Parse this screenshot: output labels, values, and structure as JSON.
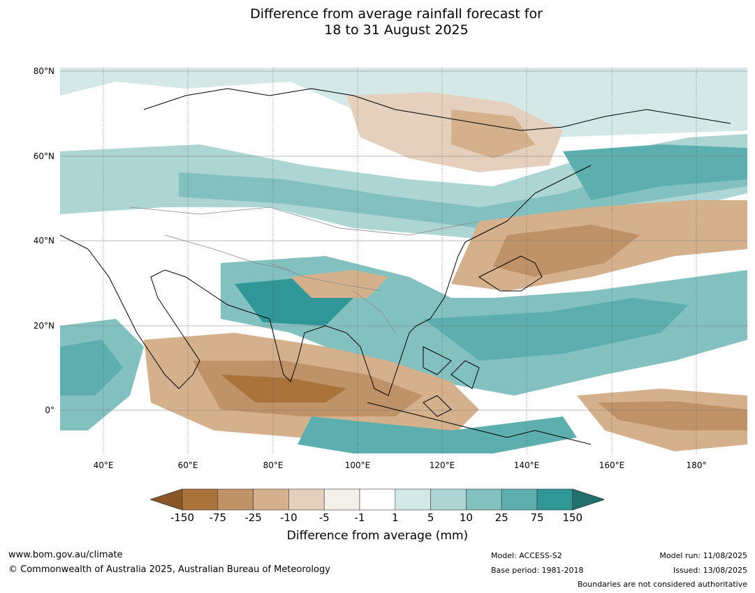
{
  "title": {
    "line1": "Difference from average rainfall forecast for",
    "line2": "18 to 31 August 2025"
  },
  "axes": {
    "lat_labels": [
      "80°N",
      "60°N",
      "40°N",
      "20°N",
      "0°"
    ],
    "lon_labels": [
      "40°E",
      "60°E",
      "80°E",
      "100°E",
      "120°E",
      "140°E",
      "160°E",
      "180°"
    ]
  },
  "colorbar": {
    "ticks": [
      "-150",
      "-75",
      "-25",
      "-10",
      "-5",
      "-1",
      "1",
      "5",
      "10",
      "25",
      "75",
      "150"
    ],
    "colors": [
      "#8a5628",
      "#a9733c",
      "#bf9267",
      "#d4b18c",
      "#e4d0bd",
      "#f3efe9",
      "#ffffff",
      "#d3e8e7",
      "#acd5d4",
      "#83c1c0",
      "#5daeae",
      "#319696",
      "#22706d"
    ],
    "label": "Difference from average (mm)"
  },
  "footer": {
    "website": "www.bom.gov.au/climate",
    "copyright": "© Commonwealth of Australia 2025, Australian Bureau of Meteorology",
    "model": "Model: ACCESS-S2",
    "base_period": "Base period: 1981-2018",
    "model_run": "Model run: 11/08/2025",
    "issued": "Issued: 13/08/2025",
    "disclaimer": "Boundaries are not considered authoritative"
  }
}
